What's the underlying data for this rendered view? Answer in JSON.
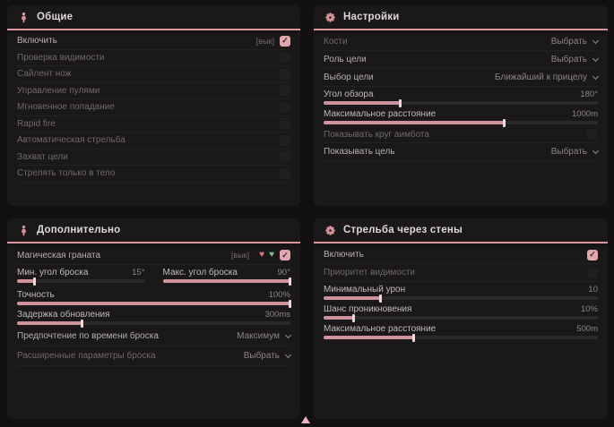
{
  "colors": {
    "accent": "#d9969e"
  },
  "glyphs": {
    "check": "✓",
    "heart": "♥"
  },
  "panels": {
    "general": {
      "title": "Общие",
      "rows": [
        {
          "label": "Включить",
          "hotkey": "[вык]",
          "checked": true
        },
        {
          "label": "Проверка видимости",
          "checked": false
        },
        {
          "label": "Сайлент нож",
          "checked": false
        },
        {
          "label": "Управление пулями",
          "checked": false
        },
        {
          "label": "Мгновенное попадание",
          "checked": false
        },
        {
          "label": "Rapid fire",
          "checked": false
        },
        {
          "label": "Автоматическая стрельба",
          "checked": false
        },
        {
          "label": "Захват цели",
          "checked": false
        },
        {
          "label": "Стрелять только в тело",
          "checked": false
        }
      ]
    },
    "settings": {
      "title": "Настройки",
      "bones": {
        "label": "Кости",
        "value": "Выбрать"
      },
      "target_role": {
        "label": "Роль цели",
        "value": "Выбрать"
      },
      "target_select": {
        "label": "Выбор цели",
        "value": "Ближайший к прицелу"
      },
      "fov": {
        "label": "Угол обзора",
        "value": "180°",
        "percent": 28
      },
      "max_distance": {
        "label": "Максимальное расстояние",
        "value": "1000m",
        "percent": 66
      },
      "show_circle": {
        "label": "Показывать круг аимбота",
        "checked": false
      },
      "show_target": {
        "label": "Показывать цель",
        "value": "Выбрать"
      }
    },
    "additional": {
      "title": "Дополнительно",
      "magic_grenade": {
        "label": "Магическая граната",
        "hotkey": "[вык]",
        "checked": true
      },
      "min_angle": {
        "label": "Мин. угол броска",
        "value": "15°",
        "percent": 14
      },
      "max_angle": {
        "label": "Макс. угол броска",
        "value": "90°",
        "percent": 100
      },
      "accuracy": {
        "label": "Точность",
        "value": "100%",
        "percent": 100
      },
      "update_delay": {
        "label": "Задержка обновления",
        "value": "300ms",
        "percent": 24
      },
      "throw_time": {
        "label": "Предпочтение по времени броска",
        "value": "Максимум"
      },
      "advanced_throw": {
        "label": "Расширенные параметры броска",
        "value": "Выбрать"
      }
    },
    "wallbang": {
      "title": "Стрельба через стены",
      "enable": {
        "label": "Включить",
        "checked": true
      },
      "visibility_priority": {
        "label": "Приоритет видимости",
        "checked": false
      },
      "min_damage": {
        "label": "Минимальный урон",
        "value": "10",
        "percent": 21
      },
      "penetration_chance": {
        "label": "Шанс проникновения",
        "value": "10%",
        "percent": 11
      },
      "max_distance": {
        "label": "Максимальное расстояние",
        "value": "500m",
        "percent": 33
      }
    }
  }
}
